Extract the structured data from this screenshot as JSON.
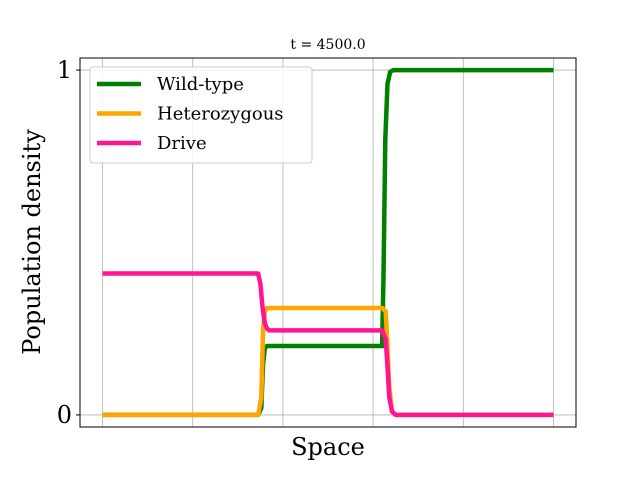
{
  "chart_data": {
    "type": "line",
    "title": "t = 4500.0",
    "xlabel": "Space",
    "ylabel": "Population density",
    "xlim": [
      -0.05,
      1.05
    ],
    "ylim": [
      -0.035,
      1.035
    ],
    "yticks": [
      0,
      1
    ],
    "ytick_labels": [
      "0",
      "1"
    ],
    "xgrid": [
      0,
      0.2,
      0.4,
      0.6,
      0.8,
      1.0
    ],
    "grid": true,
    "legend_position": "top-left",
    "series": [
      {
        "name": "Wild-type",
        "color": "#008000",
        "x": [
          0,
          0.345,
          0.352,
          0.356,
          0.36,
          0.365,
          0.63,
          0.62,
          0.623,
          0.627,
          0.632,
          0.638,
          0.645,
          1.0
        ],
        "y": [
          0,
          0,
          0.02,
          0.15,
          0.195,
          0.2,
          0.2,
          0.2,
          0.4,
          0.8,
          0.96,
          0.995,
          1.0,
          1.0
        ]
      },
      {
        "name": "Heterozygous",
        "color": "#FFA500",
        "x": [
          0,
          0.345,
          0.352,
          0.356,
          0.36,
          0.365,
          0.62,
          0.628,
          0.632,
          0.636,
          0.642,
          0.65,
          1.0
        ],
        "y": [
          0,
          0,
          0.05,
          0.25,
          0.3,
          0.31,
          0.31,
          0.3,
          0.2,
          0.08,
          0.01,
          0,
          0
        ]
      },
      {
        "name": "Drive",
        "color": "#FF1493",
        "x": [
          0,
          0.345,
          0.35,
          0.355,
          0.36,
          0.365,
          0.37,
          0.62,
          0.628,
          0.632,
          0.636,
          0.642,
          0.65,
          1.0
        ],
        "y": [
          0.41,
          0.41,
          0.38,
          0.31,
          0.265,
          0.25,
          0.245,
          0.245,
          0.22,
          0.14,
          0.05,
          0.01,
          0,
          0
        ]
      }
    ]
  }
}
